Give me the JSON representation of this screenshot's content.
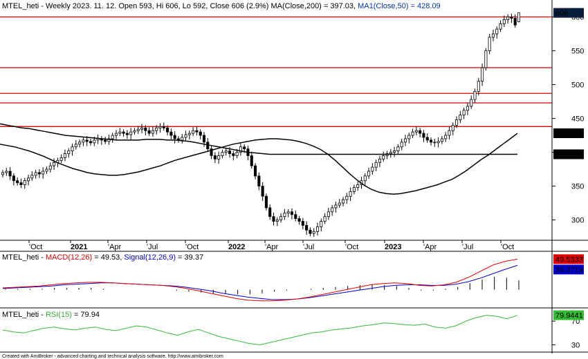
{
  "header": {
    "main": "MTEL_heti - Weekly 2023. 11. 12. Open 593, Hi 606, Lo 592, Close 606 (2.9%) MA(Close,200) = 397.03, ",
    "ma1": "MA1(Close,50) = 428.09",
    "macd_prefix": "MTEL_heti - ",
    "macd_label": "MACD(12,26)",
    "macd_mid": " = 49.53, ",
    "signal_label": "Signal(12,26,9)",
    "signal_value": " = 39.37",
    "rsi_prefix": "MTEL_heti - ",
    "rsi_label": "RSI(15)",
    "rsi_value": " = 79.94"
  },
  "footer": "Created with AmiBroker - advanced charting and technical analysis software. http://www.amibroker.com",
  "badges": {
    "price": "606",
    "ma50": "428.09",
    "ma200": "397.03",
    "macd": "49.5333",
    "signal": "39.3719",
    "rsi": "79.9441"
  },
  "colors": {
    "up": "#ffffff",
    "down": "#000000",
    "hline": "#d40000",
    "macd": "#e00000",
    "signal": "#0000cc",
    "rsi": "#33bb33",
    "price_badge": "#0a1e3c"
  },
  "chart_data": [
    {
      "type": "candlestick",
      "title": "MTEL_heti - Weekly",
      "x_ticks": [
        "'Oct",
        "2021",
        "'Apr",
        "'Jul",
        "'Oct",
        "2022",
        "'Apr",
        "'Jul",
        "'Oct",
        "2023",
        "'Apr",
        "'Jul",
        "'Oct"
      ],
      "y_ticks": [
        "600",
        "550",
        "500",
        "450",
        "400",
        "350",
        "300"
      ],
      "ylim": [
        270,
        625
      ],
      "horizontal_levels": [
        600,
        525,
        487,
        473,
        438
      ],
      "last_candle": {
        "open": 593,
        "high": 606,
        "low": 592,
        "close": 606
      },
      "close": [
        370,
        372,
        365,
        358,
        355,
        352,
        358,
        362,
        366,
        370,
        368,
        372,
        375,
        380,
        385,
        388,
        392,
        398,
        402,
        408,
        412,
        415,
        418,
        416,
        414,
        418,
        420,
        418,
        416,
        420,
        425,
        428,
        430,
        428,
        426,
        430,
        432,
        434,
        436,
        432,
        428,
        432,
        436,
        438,
        436,
        430,
        425,
        420,
        418,
        422,
        426,
        428,
        432,
        430,
        425,
        415,
        405,
        395,
        390,
        395,
        400,
        402,
        398,
        395,
        400,
        408,
        405,
        395,
        380,
        365,
        350,
        335,
        318,
        305,
        298,
        300,
        305,
        310,
        312,
        308,
        302,
        298,
        292,
        285,
        280,
        283,
        290,
        298,
        305,
        312,
        318,
        322,
        325,
        330,
        335,
        342,
        348,
        352,
        358,
        365,
        372,
        378,
        385,
        390,
        395,
        398,
        400,
        402,
        408,
        415,
        420,
        425,
        430,
        432,
        428,
        422,
        418,
        415,
        414,
        416,
        420,
        425,
        432,
        440,
        448,
        455,
        462,
        468,
        478,
        490,
        505,
        525,
        550,
        570,
        575,
        582,
        590,
        596,
        600,
        598,
        588,
        606
      ],
      "ma50": [
        412,
        410,
        408,
        405,
        402,
        398,
        394,
        389,
        384,
        380,
        376,
        373,
        370,
        368,
        367,
        366,
        366,
        367,
        369,
        371,
        374,
        377,
        380,
        384,
        388,
        391,
        394,
        397,
        400,
        403,
        406,
        409,
        412,
        414,
        416,
        418,
        419,
        420,
        420,
        419,
        418,
        416,
        413,
        409,
        404,
        397,
        388,
        378,
        368,
        359,
        351,
        345,
        341,
        339,
        338,
        339,
        341,
        343,
        346,
        349,
        352,
        356,
        360,
        366,
        373,
        381,
        389,
        396,
        404,
        412,
        420,
        428
      ],
      "ma200": [
        442,
        440,
        438,
        436,
        435,
        433,
        431,
        429,
        427,
        425,
        424,
        423,
        422,
        421,
        420,
        419,
        418,
        418,
        418,
        418,
        419,
        419,
        419,
        418,
        418,
        417,
        416,
        414,
        412,
        410,
        408,
        406,
        404,
        402,
        400,
        399,
        398,
        397,
        397,
        397,
        397,
        397,
        397,
        397,
        397,
        397,
        397,
        397,
        397,
        397,
        397,
        397,
        397,
        397,
        397,
        397,
        397,
        397,
        397,
        397,
        397,
        397,
        397,
        397,
        397,
        397,
        397,
        397,
        397,
        397,
        397,
        397
      ]
    },
    {
      "type": "line",
      "title": "MACD",
      "series": [
        {
          "name": "MACD(12,26)",
          "values": [
            3,
            4,
            5,
            6,
            8,
            10,
            11,
            12,
            12,
            11,
            10,
            9,
            8,
            7,
            5,
            2,
            -2,
            -6,
            -10,
            -14,
            -17,
            -18,
            -18,
            -17,
            -15,
            -12,
            -8,
            -4,
            0,
            4,
            8,
            10,
            11,
            10,
            7,
            6,
            8,
            12,
            20,
            30,
            40,
            46,
            49.5
          ]
        },
        {
          "name": "Signal(12,26,9)",
          "values": [
            2,
            3,
            4,
            5,
            6,
            8,
            9,
            10,
            11,
            11,
            10,
            9,
            8,
            7,
            6,
            4,
            1,
            -2,
            -6,
            -9,
            -12,
            -14,
            -16,
            -16,
            -15,
            -13,
            -10,
            -7,
            -4,
            -1,
            2,
            5,
            7,
            8,
            8,
            7,
            7,
            9,
            13,
            19,
            26,
            33,
            39.4
          ]
        }
      ],
      "ylim": [
        -25,
        60
      ]
    },
    {
      "type": "line",
      "title": "RSI",
      "series": [
        {
          "name": "RSI(15)",
          "values": [
            55,
            52,
            50,
            54,
            58,
            60,
            57,
            55,
            58,
            60,
            56,
            54,
            58,
            62,
            60,
            55,
            50,
            46,
            52,
            56,
            50,
            44,
            40,
            36,
            32,
            30,
            34,
            38,
            42,
            46,
            50,
            52,
            55,
            57,
            59,
            62,
            64,
            67,
            66,
            64,
            63,
            65,
            60,
            58,
            62,
            70,
            76,
            80,
            78,
            74,
            79.9
          ]
        }
      ],
      "y_ticks": [
        "70",
        "30"
      ],
      "ylim": [
        20,
        90
      ]
    }
  ]
}
